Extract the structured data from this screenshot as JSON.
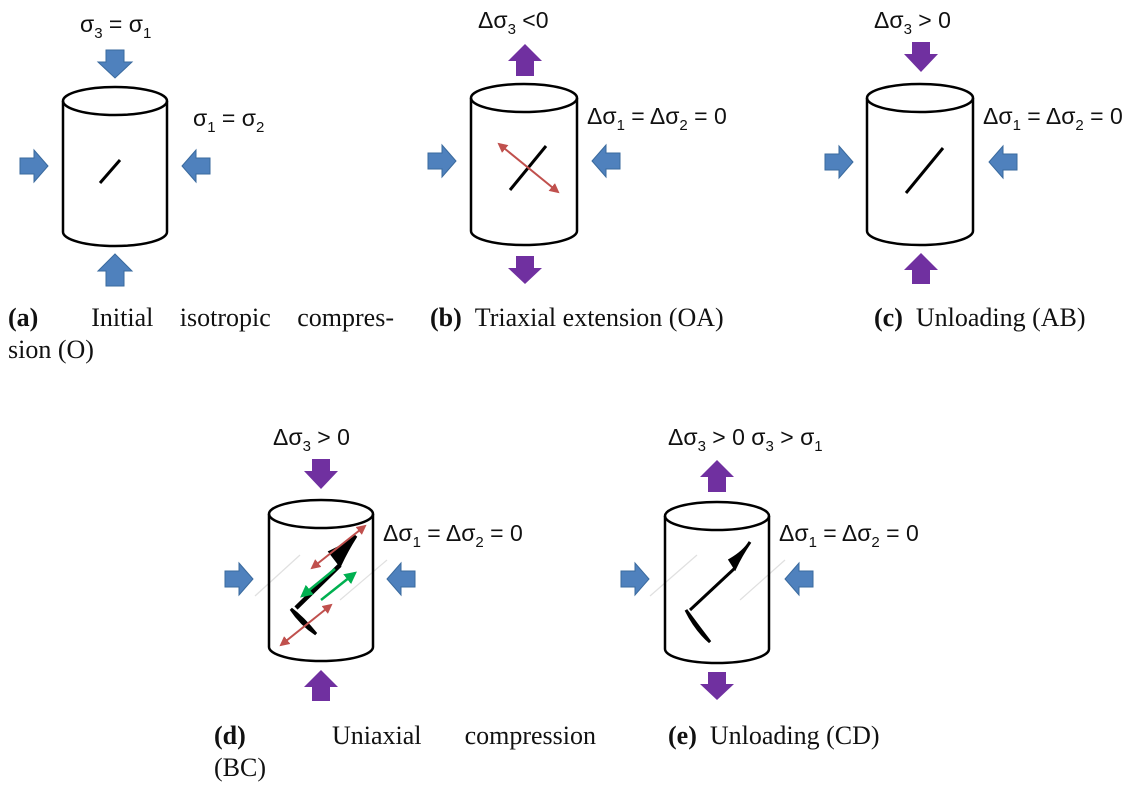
{
  "panels": {
    "a": {
      "top": {
        "s": "σ",
        "i": "3",
        "m": " = σ",
        "j": "1"
      },
      "side": {
        "s": "σ",
        "i": "1",
        "m": " = σ",
        "j": "2"
      },
      "caption": {
        "letter": "(a)",
        "text1": "Initial isotropic compres-",
        "text2": "sion (O)"
      }
    },
    "b": {
      "top": {
        "s": "Δσ",
        "i": "3",
        "m": " <0"
      },
      "side": {
        "s": "Δσ",
        "i": "1",
        "m": " = Δσ",
        "j": "2",
        "e": "  = 0"
      },
      "caption": {
        "letter": "(b)",
        "text": "Triaxial extension (OA)"
      }
    },
    "c": {
      "top": {
        "s": "Δσ",
        "i": "3",
        "m": " > 0"
      },
      "side": {
        "s": "Δσ",
        "i": "1",
        "m": " = Δσ",
        "j": "2",
        "e": "  = 0"
      },
      "caption": {
        "letter": "(c)",
        "text": "Unloading (AB)"
      }
    },
    "d": {
      "top": {
        "s": "Δσ",
        "i": "3",
        "m": " > 0"
      },
      "side": {
        "s": "Δσ",
        "i": "1",
        "m": " = Δσ",
        "j": "2",
        "e": "  = 0"
      },
      "caption": {
        "letter": "(d)",
        "text1": "Uniaxial compression",
        "text2": "(BC)"
      }
    },
    "e": {
      "top": {
        "s": "Δσ",
        "i": "3",
        "m": " > 0",
        "x": "  σ",
        "k": "3",
        "y": " > σ",
        "l": "1"
      },
      "side": {
        "s": "Δσ",
        "i": "1",
        "m": " = Δσ",
        "j": "2",
        "e": "  = 0"
      },
      "caption": {
        "letter": "(e)",
        "text": "Unloading (CD)"
      }
    }
  },
  "colors": {
    "blue_arrow": "#4f81bd",
    "purple_arrow": "#7030a0",
    "red_arrow": "#c0504d",
    "green_arrow": "#00b050",
    "line": "#000000"
  }
}
